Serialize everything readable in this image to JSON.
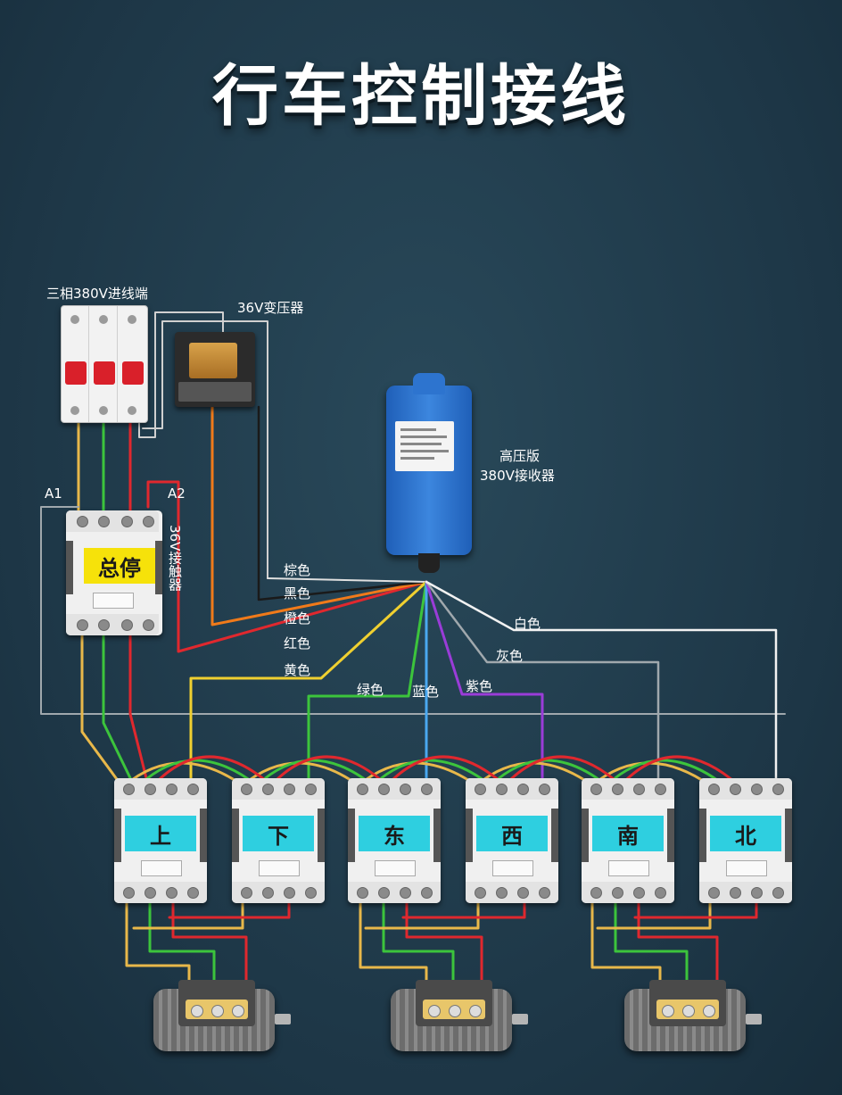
{
  "title": "行车控制接线",
  "labels": {
    "breaker": "三相380V进线端",
    "transformer": "36V变压器",
    "receiver_line1": "高压版",
    "receiver_line2": "380V接收器",
    "a1": "A1",
    "a2": "A2",
    "contactor_36v": "36V接触器",
    "main_stop": "总停"
  },
  "wire_labels": {
    "brown": "棕色",
    "black": "黑色",
    "orange": "橙色",
    "red": "红色",
    "yellow": "黄色",
    "green": "绿色",
    "blue": "蓝色",
    "purple": "紫色",
    "gray": "灰色",
    "white": "白色"
  },
  "contactors": [
    "上",
    "下",
    "东",
    "西",
    "南",
    "北"
  ],
  "colors": {
    "background": "#1f3a4a",
    "contactor_face": "#2ecfe0",
    "main_stop_face": "#f6e20a",
    "phase_yellow": "#e8b84a",
    "phase_green": "#3cc43c",
    "phase_red": "#e0282e",
    "wire_white": "#f2f2f2",
    "wire_gray": "#a0a8ad",
    "wire_orange": "#f07a1a",
    "wire_red": "#e0282e",
    "wire_yellow": "#f0d030",
    "wire_green": "#3cc43c",
    "wire_blue": "#4aa8f0",
    "wire_purple": "#9a3cd8"
  },
  "icons": [
    "circuit-breaker-icon",
    "transformer-icon",
    "receiver-icon",
    "contactor-icon",
    "motor-icon"
  ]
}
